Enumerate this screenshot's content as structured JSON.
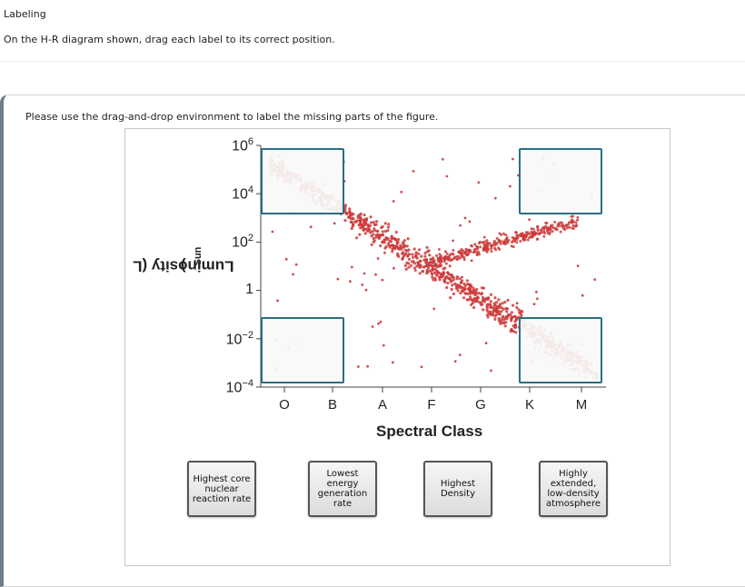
{
  "header": {
    "title": "Labeling",
    "instruction": "On the H-R diagram shown, drag each label to its correct position."
  },
  "panel": {
    "instruction": "Please use the drag-and-drop environment to label the missing parts of the figure."
  },
  "diagram": {
    "y_axis_title": "Luminosity (L",
    "y_axis_title_sub": "Sun",
    "y_axis_title_end": ")",
    "x_axis_title": "Spectral Class",
    "y_ticks": [
      {
        "base": "10",
        "exp": "6"
      },
      {
        "base": "10",
        "exp": "4"
      },
      {
        "base": "10",
        "exp": "2"
      },
      {
        "base": "1",
        "exp": ""
      },
      {
        "base": "10",
        "exp": "−2"
      },
      {
        "base": "10",
        "exp": "−4"
      }
    ],
    "x_ticks": [
      "O",
      "B",
      "A",
      "F",
      "G",
      "K",
      "M"
    ],
    "point_color": "#cc3a3a",
    "zone_border_color": "#2b6f82"
  },
  "labels": [
    {
      "text": "Highest core nuclear reaction rate"
    },
    {
      "text": "Lowest energy generation rate"
    },
    {
      "text": "Highest Density"
    },
    {
      "text": "Highly extended, low-density atmosphere"
    }
  ]
}
